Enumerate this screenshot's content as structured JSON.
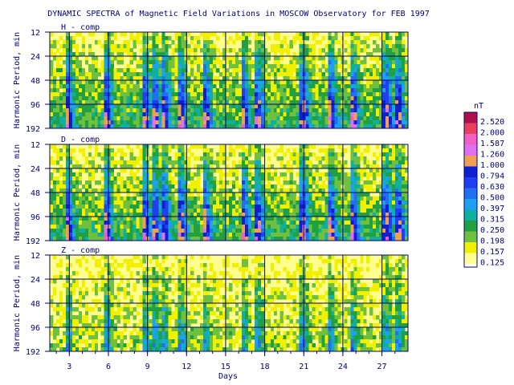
{
  "chart_data": {
    "type": "heatmap",
    "title": "DYNAMIC SPECTRA of Magnetic Field Variations in MOSCOW Observatory for FEB 1997",
    "xlabel": "Days",
    "ylabel": "Harmonic Period, min",
    "x_ticks": [
      "3",
      "6",
      "9",
      "12",
      "15",
      "18",
      "21",
      "24",
      "27"
    ],
    "x_tick_values": [
      3,
      6,
      9,
      12,
      15,
      18,
      21,
      24,
      27
    ],
    "xlim": [
      1.5,
      29.0
    ],
    "y_ticks": [
      "12",
      "24",
      "48",
      "96",
      "192"
    ],
    "y_tick_values": [
      12,
      24,
      48,
      96,
      192
    ],
    "y_scale": "log2",
    "grid": true,
    "panels": [
      {
        "name": "H - comp",
        "activity": 1.0
      },
      {
        "name": "D - comp",
        "activity": 1.0
      },
      {
        "name": "Z - comp",
        "activity": 0.55
      }
    ],
    "colorbar": {
      "unit": "nT",
      "levels": [
        "2.520",
        "2.000",
        "1.587",
        "1.260",
        "1.000",
        "0.794",
        "0.630",
        "0.500",
        "0.397",
        "0.315",
        "0.250",
        "0.198",
        "0.157",
        "0.125"
      ],
      "colors": [
        "#b0104a",
        "#e8405a",
        "#f060c0",
        "#e070f0",
        "#f0a050",
        "#1020d0",
        "#2040f0",
        "#2070f0",
        "#20a0f0",
        "#10b0a0",
        "#20a040",
        "#70c040",
        "#f0f000",
        "#ffff90"
      ]
    },
    "active_days": [
      2.9,
      5.9,
      8.8,
      9.6,
      10.3,
      11.6,
      13.5,
      16.4,
      17.5,
      21.0,
      23.1,
      24.8,
      27.4,
      28.3
    ]
  }
}
